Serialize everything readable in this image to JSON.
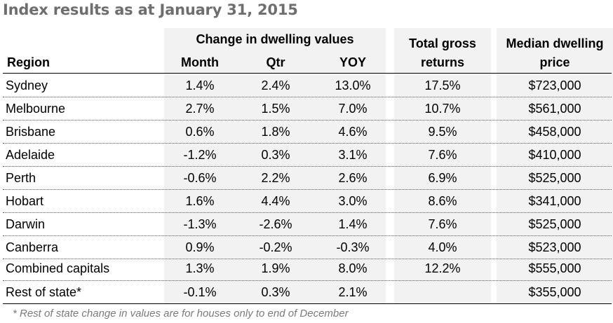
{
  "title": "Index results as at January 31, 2015",
  "headers": {
    "group_change": "Change in dwelling values",
    "region": "Region",
    "month": "Month",
    "qtr": "Qtr",
    "yoy": "YOY",
    "total_line1": "Total gross",
    "total_line2": "returns",
    "median_line1": "Median dwelling",
    "median_line2": "price"
  },
  "rows": [
    {
      "region": "Sydney",
      "month": "1.4%",
      "qtr": "2.4%",
      "yoy": "13.0%",
      "total": "17.5%",
      "median": "$723,000"
    },
    {
      "region": "Melbourne",
      "month": "2.7%",
      "qtr": "1.5%",
      "yoy": "7.0%",
      "total": "10.7%",
      "median": "$561,000"
    },
    {
      "region": "Brisbane",
      "month": "0.6%",
      "qtr": "1.8%",
      "yoy": "4.6%",
      "total": "9.5%",
      "median": "$458,000"
    },
    {
      "region": "Adelaide",
      "month": "-1.2%",
      "qtr": "0.3%",
      "yoy": "3.1%",
      "total": "7.6%",
      "median": "$410,000"
    },
    {
      "region": "Perth",
      "month": "-0.6%",
      "qtr": "2.2%",
      "yoy": "2.6%",
      "total": "6.9%",
      "median": "$525,000"
    },
    {
      "region": "Hobart",
      "month": "1.6%",
      "qtr": "4.4%",
      "yoy": "3.0%",
      "total": "8.6%",
      "median": "$341,000"
    },
    {
      "region": "Darwin",
      "month": "-1.3%",
      "qtr": "-2.6%",
      "yoy": "1.4%",
      "total": "7.6%",
      "median": "$525,000"
    },
    {
      "region": "Canberra",
      "month": "0.9%",
      "qtr": "-0.2%",
      "yoy": "-0.3%",
      "total": "4.0%",
      "median": "$523,000"
    },
    {
      "region": "Combined capitals",
      "month": "1.3%",
      "qtr": "1.9%",
      "yoy": "8.0%",
      "total": "12.2%",
      "median": "$555,000"
    },
    {
      "region": "Rest of state*",
      "month": "-0.1%",
      "qtr": "0.3%",
      "yoy": "2.1%",
      "total": "",
      "median": "$355,000"
    }
  ],
  "footnote": "* Rest of state change in values are for houses only to end of December",
  "colors": {
    "title": "#6e6e6e",
    "shade": "#f2f2f2",
    "footnote": "#7a7a7a"
  }
}
